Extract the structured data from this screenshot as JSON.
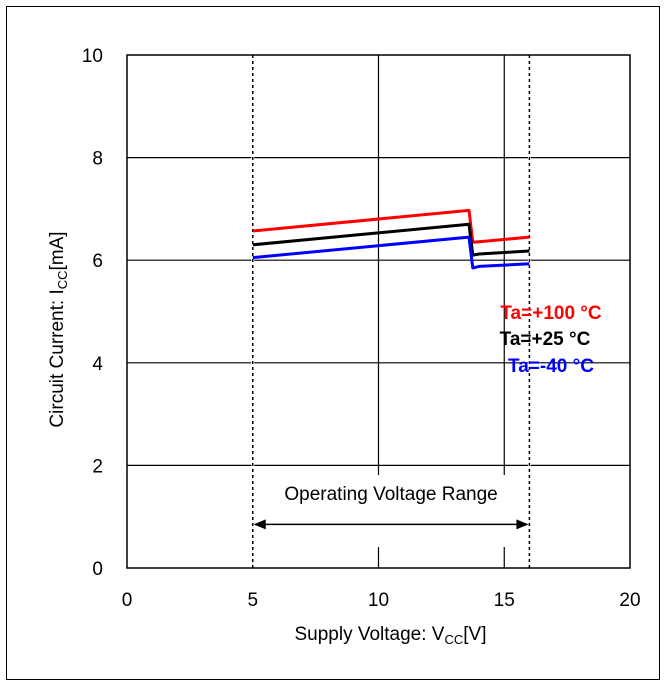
{
  "chart_data": {
    "type": "line",
    "xlabel": "Supply Voltage: VCC[V]",
    "xlabel_parts": {
      "main": "Supply Voltage: V",
      "sub": "CC",
      "unit": "[V]"
    },
    "ylabel": "Circuit Current: ICC[mA]",
    "ylabel_parts": {
      "main": "Circuit Current: I",
      "sub": "CC",
      "unit": "[mA]"
    },
    "xlim": [
      0,
      20
    ],
    "ylim": [
      0,
      10
    ],
    "x_ticks": [
      0,
      5,
      10,
      15,
      20
    ],
    "y_ticks": [
      0,
      2,
      4,
      6,
      8,
      10
    ],
    "grid": true,
    "legend_position": "right",
    "series": [
      {
        "name": "Ta=+100 °C",
        "color": "#ff0000",
        "x": [
          5.0,
          13.6,
          13.75,
          14.0,
          16.0
        ],
        "y": [
          6.57,
          6.97,
          6.35,
          6.36,
          6.45
        ]
      },
      {
        "name": "Ta=+25 °C",
        "color": "#000000",
        "x": [
          5.0,
          13.6,
          13.75,
          14.0,
          16.0
        ],
        "y": [
          6.3,
          6.7,
          6.1,
          6.12,
          6.18
        ]
      },
      {
        "name": "Ta=-40 °C",
        "color": "#0000ff",
        "x": [
          5.0,
          13.6,
          13.75,
          14.0,
          16.0
        ],
        "y": [
          6.05,
          6.45,
          5.85,
          5.88,
          5.93
        ]
      }
    ],
    "reference_lines": {
      "x": [
        5.0,
        16.0
      ],
      "style": "dotted"
    },
    "annotation": {
      "text": "Operating Voltage Range",
      "x_from": 5.0,
      "x_to": 16.0,
      "y": 0.85
    }
  }
}
